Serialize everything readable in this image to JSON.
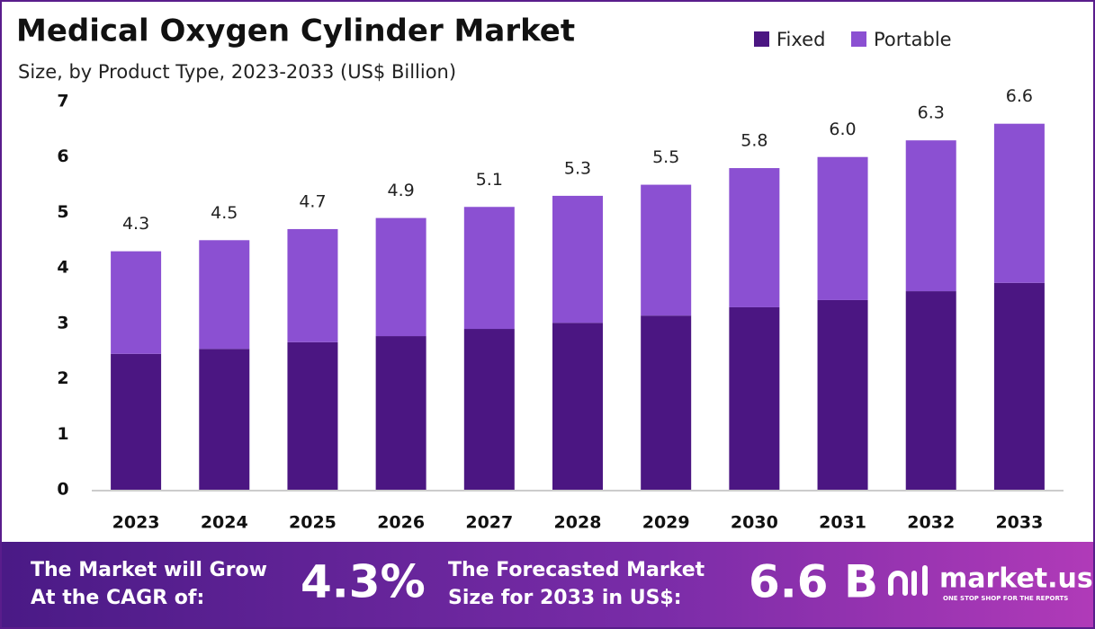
{
  "chart_data": {
    "type": "stacked_bar",
    "title": "Medical Oxygen Cylinder Market",
    "subtitle": "Size, by Product Type, 2023-2033 (US$ Billion)",
    "categories": [
      "2023",
      "2024",
      "2025",
      "2026",
      "2027",
      "2028",
      "2029",
      "2030",
      "2031",
      "2032",
      "2033"
    ],
    "series": [
      {
        "name": "Fixed",
        "color": "#4b1682",
        "values": [
          2.45,
          2.54,
          2.66,
          2.77,
          2.9,
          3.01,
          3.14,
          3.29,
          3.42,
          3.58,
          3.73
        ]
      },
      {
        "name": "Portable",
        "color": "#8b50d2",
        "values": [
          1.85,
          1.96,
          2.04,
          2.13,
          2.2,
          2.29,
          2.36,
          2.51,
          2.58,
          2.72,
          2.87
        ]
      }
    ],
    "totals": [
      4.3,
      4.5,
      4.7,
      4.9,
      5.1,
      5.3,
      5.5,
      5.8,
      6.0,
      6.3,
      6.6
    ],
    "value_labels": [
      "4.3",
      "4.5",
      "4.7",
      "4.9",
      "5.1",
      "5.3",
      "5.5",
      "5.8",
      "6.0",
      "6.3",
      "6.6"
    ],
    "ylim": [
      0,
      7
    ],
    "yticks": [
      0,
      1,
      2,
      3,
      4,
      5,
      6,
      7
    ],
    "grid": false,
    "legend": "top-right"
  },
  "footer": {
    "cagr_text": [
      "The Market will Grow",
      "At the CAGR of:"
    ],
    "cagr_value": "4.3%",
    "forecast_text": [
      "The Forecasted Market",
      "Size for 2033 in US$:"
    ],
    "forecast_value": "6.6 B",
    "brand": "market.us",
    "tagline": "ONE STOP SHOP FOR THE REPORTS"
  }
}
